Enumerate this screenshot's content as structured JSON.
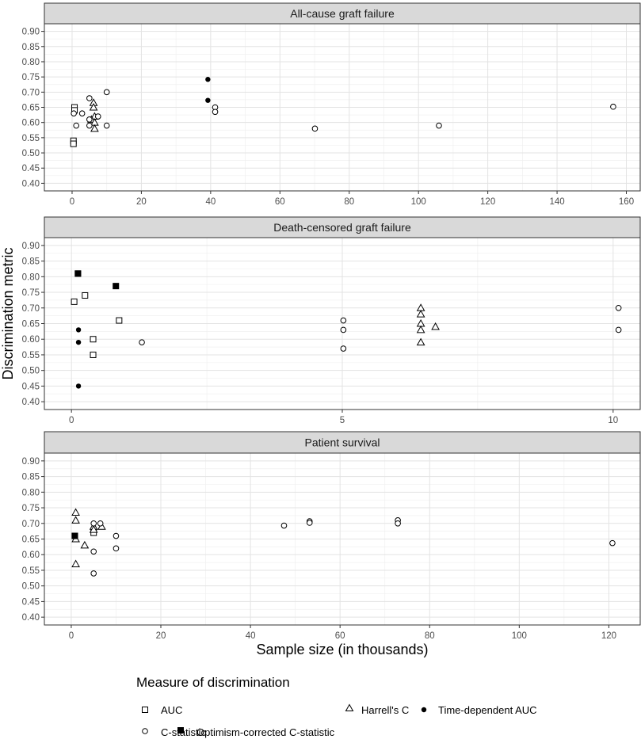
{
  "figure": {
    "ylabel": "Discrimination metric",
    "xlabel": "Sample size (in thousands)"
  },
  "legend": {
    "title": "Measure of discrimination",
    "items": [
      {
        "label": "AUC",
        "shape": "open-square"
      },
      {
        "label": "Harrell's C",
        "shape": "open-triangle"
      },
      {
        "label": "Time-dependent AUC",
        "shape": "filled-circle"
      },
      {
        "label": "C-statistic",
        "shape": "open-circle"
      },
      {
        "label": "Optimism-corrected C-statistic",
        "shape": "filled-square"
      }
    ]
  },
  "chart_data": [
    {
      "type": "scatter",
      "title": "All-cause graft failure",
      "xlim": [
        -8,
        164
      ],
      "ylim": [
        0.375,
        0.925
      ],
      "xticks": [
        0,
        20,
        40,
        60,
        80,
        100,
        120,
        140,
        160
      ],
      "yticks": [
        0.4,
        0.45,
        0.5,
        0.55,
        0.6,
        0.65,
        0.7,
        0.75,
        0.8,
        0.85,
        0.9
      ],
      "grid": true,
      "series": [
        {
          "name": "AUC",
          "points": [
            [
              0.7,
              0.65
            ],
            [
              0.7,
              0.64
            ],
            [
              0.4,
              0.54
            ],
            [
              0.4,
              0.53
            ]
          ]
        },
        {
          "name": "Harrell's C",
          "points": [
            [
              6.2,
              0.665
            ],
            [
              6.2,
              0.65
            ],
            [
              6.5,
              0.62
            ],
            [
              5.6,
              0.61
            ],
            [
              6.5,
              0.6
            ],
            [
              6.5,
              0.58
            ]
          ]
        },
        {
          "name": "Time-dependent AUC",
          "points": [
            [
              39.2,
              0.742
            ],
            [
              39.2,
              0.673
            ]
          ]
        },
        {
          "name": "C-statistic",
          "points": [
            [
              0.5,
              0.63
            ],
            [
              1.2,
              0.59
            ],
            [
              2.9,
              0.63
            ],
            [
              5.0,
              0.68
            ],
            [
              5.0,
              0.61
            ],
            [
              5.0,
              0.59
            ],
            [
              7.5,
              0.62
            ],
            [
              10.0,
              0.7
            ],
            [
              10.0,
              0.59
            ],
            [
              41.3,
              0.65
            ],
            [
              41.3,
              0.635
            ],
            [
              70.1,
              0.58
            ],
            [
              105.9,
              0.59
            ],
            [
              156.2,
              0.652
            ]
          ]
        },
        {
          "name": "Optimism-corrected C-statistic",
          "points": []
        }
      ]
    },
    {
      "type": "scatter",
      "title": "Death-censored graft failure",
      "xlim": [
        -0.5,
        10.5
      ],
      "ylim": [
        0.375,
        0.925
      ],
      "xticks": [
        0,
        5,
        10
      ],
      "yticks": [
        0.4,
        0.45,
        0.5,
        0.55,
        0.6,
        0.65,
        0.7,
        0.75,
        0.8,
        0.85,
        0.9
      ],
      "grid": true,
      "series": [
        {
          "name": "AUC",
          "points": [
            [
              0.05,
              0.72
            ],
            [
              0.25,
              0.74
            ],
            [
              0.12,
              0.81
            ],
            [
              0.4,
              0.6
            ],
            [
              0.4,
              0.55
            ],
            [
              0.88,
              0.66
            ]
          ]
        },
        {
          "name": "Harrell's C",
          "points": [
            [
              6.45,
              0.7
            ],
            [
              6.45,
              0.68
            ],
            [
              6.45,
              0.65
            ],
            [
              6.45,
              0.63
            ],
            [
              6.45,
              0.59
            ],
            [
              6.72,
              0.64
            ]
          ]
        },
        {
          "name": "Time-dependent AUC",
          "points": [
            [
              0.13,
              0.63
            ],
            [
              0.13,
              0.59
            ],
            [
              0.13,
              0.45
            ]
          ]
        },
        {
          "name": "C-statistic",
          "points": [
            [
              1.3,
              0.59
            ],
            [
              5.02,
              0.66
            ],
            [
              5.02,
              0.63
            ],
            [
              5.02,
              0.57
            ],
            [
              10.1,
              0.7
            ],
            [
              10.1,
              0.63
            ]
          ]
        },
        {
          "name": "Optimism-corrected C-statistic",
          "points": [
            [
              0.12,
              0.81
            ],
            [
              0.82,
              0.77
            ]
          ]
        }
      ]
    },
    {
      "type": "scatter",
      "title": "Patient survival",
      "xlim": [
        -6,
        127
      ],
      "ylim": [
        0.375,
        0.925
      ],
      "xticks": [
        0,
        20,
        40,
        60,
        80,
        100,
        120
      ],
      "yticks": [
        0.4,
        0.45,
        0.5,
        0.55,
        0.6,
        0.65,
        0.7,
        0.75,
        0.8,
        0.85,
        0.9
      ],
      "grid": true,
      "series": [
        {
          "name": "AUC",
          "points": [
            [
              0.8,
              0.66
            ],
            [
              5.0,
              0.67
            ]
          ]
        },
        {
          "name": "Harrell's C",
          "points": [
            [
              1.0,
              0.735
            ],
            [
              1.0,
              0.71
            ],
            [
              1.0,
              0.65
            ],
            [
              1.0,
              0.57
            ],
            [
              3.0,
              0.63
            ],
            [
              5.0,
              0.69
            ],
            [
              5.0,
              0.68
            ],
            [
              6.8,
              0.69
            ]
          ]
        },
        {
          "name": "Time-dependent AUC",
          "points": []
        },
        {
          "name": "C-statistic",
          "points": [
            [
              5.0,
              0.7
            ],
            [
              5.0,
              0.61
            ],
            [
              5.0,
              0.54
            ],
            [
              6.5,
              0.7
            ],
            [
              10.0,
              0.66
            ],
            [
              10.0,
              0.62
            ],
            [
              47.5,
              0.693
            ],
            [
              53.2,
              0.707
            ],
            [
              53.2,
              0.702
            ],
            [
              72.9,
              0.71
            ],
            [
              72.9,
              0.7
            ],
            [
              120.8,
              0.637
            ]
          ]
        },
        {
          "name": "Optimism-corrected C-statistic",
          "points": [
            [
              0.8,
              0.66
            ]
          ]
        }
      ]
    }
  ]
}
